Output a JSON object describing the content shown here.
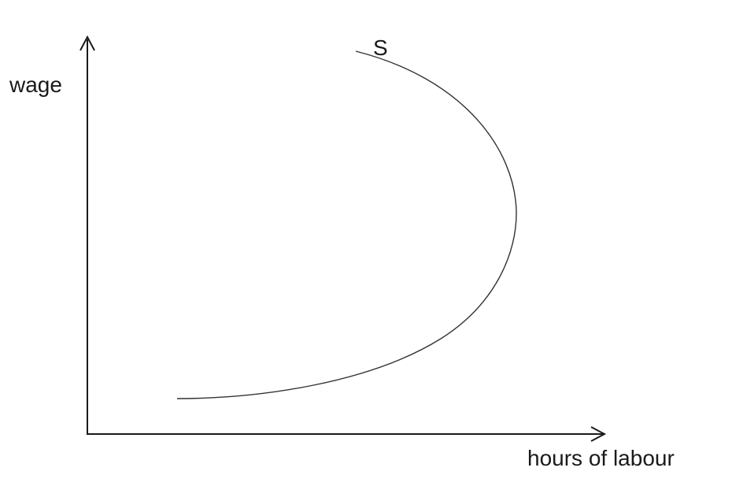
{
  "diagram": {
    "y_axis_label": "wage",
    "x_axis_label": "hours of labour",
    "curve_label": "S"
  }
}
